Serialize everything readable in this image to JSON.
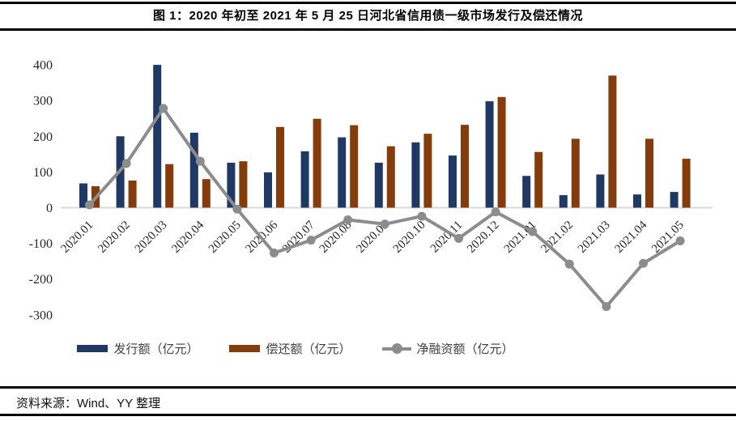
{
  "header": {
    "title": "图 1：2020 年初至 2021 年 5 月 25 日河北省信用债一级市场发行及偿还情况"
  },
  "footer": {
    "source": "资料来源：Wind、YY 整理"
  },
  "chart_data": {
    "type": "bar+line combo",
    "title": "",
    "xlabel": "",
    "ylabel": "",
    "unit": "亿元",
    "categories": [
      "2020.01",
      "2020.02",
      "2020.03",
      "2020.04",
      "2020.05",
      "2020.06",
      "2020.07",
      "2020.08",
      "2020.09",
      "2020.10",
      "2020.11",
      "2020.12",
      "2021.01",
      "2021.02",
      "2021.03",
      "2021.04",
      "2021.05"
    ],
    "series": [
      {
        "name": "发行额（亿元）",
        "type": "bar",
        "color": "#1F3864",
        "values": [
          68,
          200,
          400,
          210,
          126,
          99,
          158,
          197,
          126,
          183,
          146,
          298,
          89,
          35,
          93,
          37,
          44
        ]
      },
      {
        "name": "偿还额（亿元）",
        "type": "bar",
        "color": "#843C0C",
        "values": [
          60,
          76,
          122,
          80,
          130,
          226,
          249,
          231,
          172,
          207,
          232,
          310,
          156,
          193,
          370,
          193,
          137
        ]
      },
      {
        "name": "净融资额（亿元）",
        "type": "line",
        "color": "#8C8C8C",
        "values": [
          8,
          124,
          278,
          130,
          -4,
          -127,
          -91,
          -34,
          -46,
          -24,
          -86,
          -12,
          -67,
          -158,
          -277,
          -156,
          -93
        ]
      }
    ],
    "ylim": [
      -300,
      400
    ],
    "yticks": [
      400,
      300,
      200,
      100,
      0,
      -100,
      -200,
      -300
    ],
    "grid": false,
    "legend_position": "bottom",
    "axis_line_color": "#D9D9D9",
    "tick_label_color": "#262626"
  }
}
